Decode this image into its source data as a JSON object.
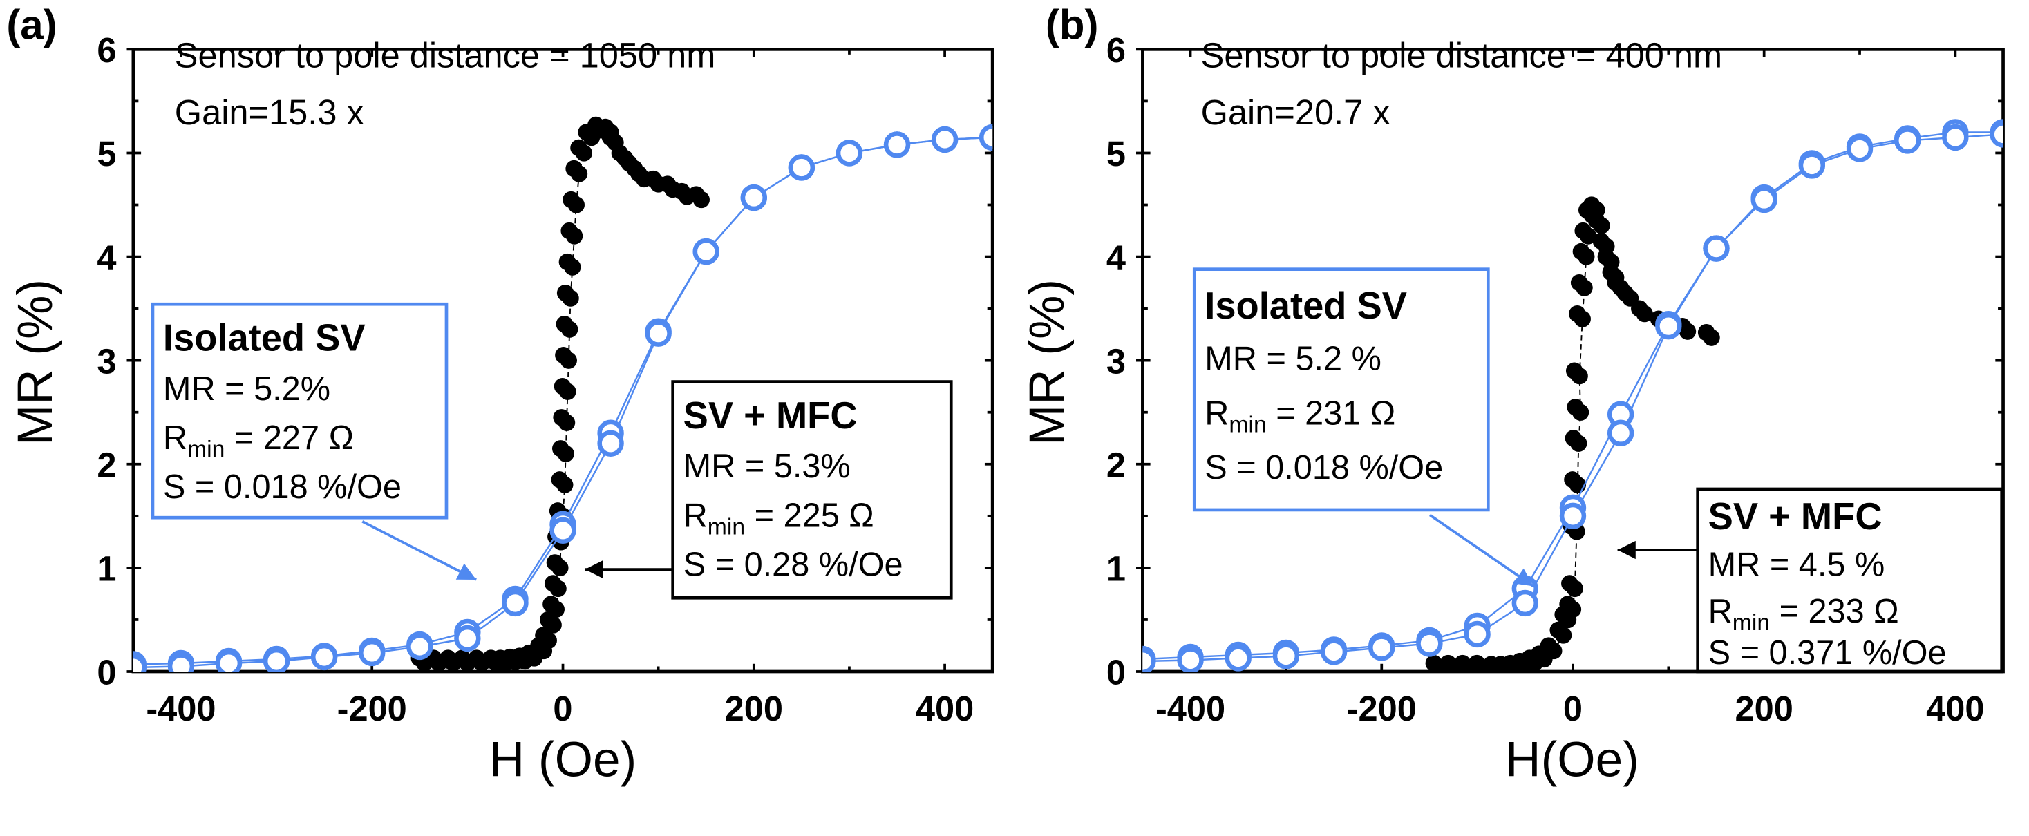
{
  "chart_data": [
    {
      "type": "scatter",
      "panel_label": "(a)",
      "xlabel": "H (Oe)",
      "ylabel": "MR (%)",
      "xlim": [
        -450,
        450
      ],
      "ylim": [
        0,
        6
      ],
      "xticks": [
        "-400",
        "-200",
        "0",
        "200",
        "400"
      ],
      "xtick_values": [
        -400,
        -200,
        0,
        200,
        400
      ],
      "yticks": [
        "0",
        "1",
        "2",
        "3",
        "4",
        "5",
        "6"
      ],
      "grid": false,
      "annotations": [
        "Sensor to pole distance = 1050 nm",
        "Gain=15.3 x"
      ],
      "boxes": {
        "isolated": {
          "title": "Isolated SV",
          "mr": "MR = 5.2%",
          "r_pre": "R",
          "r_sub": "min",
          "r_post": " = 227 Ω",
          "s": "S = 0.018 %/Oe"
        },
        "mfc": {
          "title": "SV + MFC",
          "mr": "MR = 5.3%",
          "r_pre": "R",
          "r_sub": "min",
          "r_post": " = 225 Ω",
          "s": "S = 0.28 %/Oe"
        }
      },
      "series": [
        {
          "name": "Isolated SV",
          "color": "#5089f0",
          "marker": "open-circle",
          "x": [
            -450,
            -400,
            -350,
            -300,
            -250,
            -200,
            -150,
            -100,
            -50,
            0,
            50,
            100,
            150,
            200,
            250,
            300,
            350,
            400,
            450
          ],
          "y": [
            0.07,
            0.08,
            0.1,
            0.12,
            0.15,
            0.2,
            0.26,
            0.38,
            0.7,
            1.42,
            2.3,
            3.28,
            4.05,
            4.57,
            4.86,
            5.0,
            5.08,
            5.13,
            5.15
          ],
          "y_return": [
            0.04,
            0.05,
            0.08,
            0.1,
            0.14,
            0.18,
            0.24,
            0.32,
            0.66,
            1.36,
            2.2,
            3.26,
            4.05,
            4.57,
            4.86,
            5.0,
            5.08,
            5.13,
            5.15
          ]
        },
        {
          "name": "SV + MFC",
          "color": "#000000",
          "marker": "filled-circle",
          "points": [
            [
              -145,
              0.08
            ],
            [
              -130,
              0.08
            ],
            [
              -115,
              0.08
            ],
            [
              -100,
              0.08
            ],
            [
              -85,
              0.08
            ],
            [
              -70,
              0.08
            ],
            [
              -60,
              0.08
            ],
            [
              -50,
              0.09
            ],
            [
              -40,
              0.1
            ],
            [
              -30,
              0.13
            ],
            [
              -20,
              0.2
            ],
            [
              -15,
              0.3
            ],
            [
              -10,
              0.45
            ],
            [
              -7,
              0.6
            ],
            [
              -5,
              0.8
            ],
            [
              -3,
              1.0
            ],
            [
              -2,
              1.25
            ],
            [
              0,
              1.5
            ],
            [
              2,
              1.8
            ],
            [
              3,
              2.1
            ],
            [
              4,
              2.4
            ],
            [
              5,
              2.7
            ],
            [
              6,
              3.0
            ],
            [
              7,
              3.3
            ],
            [
              8,
              3.6
            ],
            [
              10,
              3.9
            ],
            [
              12,
              4.2
            ],
            [
              14,
              4.5
            ],
            [
              17,
              4.8
            ],
            [
              22,
              5.0
            ],
            [
              30,
              5.15
            ],
            [
              40,
              5.22
            ],
            [
              50,
              5.2
            ],
            [
              55,
              5.1
            ],
            [
              65,
              4.95
            ],
            [
              75,
              4.85
            ],
            [
              85,
              4.75
            ],
            [
              100,
              4.7
            ],
            [
              115,
              4.65
            ],
            [
              130,
              4.58
            ],
            [
              145,
              4.55
            ]
          ]
        }
      ]
    },
    {
      "type": "scatter",
      "panel_label": "(b)",
      "xlabel": "H(Oe)",
      "ylabel": "MR (%)",
      "xlim": [
        -450,
        450
      ],
      "ylim": [
        0,
        6
      ],
      "xticks": [
        "-400",
        "-200",
        "0",
        "200",
        "400"
      ],
      "xtick_values": [
        -400,
        -200,
        0,
        200,
        400
      ],
      "yticks": [
        "0",
        "1",
        "2",
        "3",
        "4",
        "5",
        "6"
      ],
      "grid": false,
      "annotations": [
        "Sensor to pole distance = 400 nm",
        "Gain=20.7 x"
      ],
      "boxes": {
        "isolated": {
          "title": "Isolated SV",
          "mr": "MR = 5.2 %",
          "r_pre": "R",
          "r_sub": "min",
          "r_post": " = 231 Ω",
          "s": "S = 0.018 %/Oe"
        },
        "mfc": {
          "title": "SV + MFC",
          "mr": "MR = 4.5 %",
          "r_pre": "R",
          "r_sub": "min",
          "r_post": " = 233 Ω",
          "s": "S = 0.371 %/Oe"
        }
      },
      "series": [
        {
          "name": "Isolated SV",
          "color": "#5089f0",
          "marker": "open-circle",
          "x": [
            -450,
            -400,
            -350,
            -300,
            -250,
            -200,
            -150,
            -100,
            -50,
            0,
            50,
            100,
            150,
            200,
            250,
            300,
            350,
            400,
            450
          ],
          "y": [
            0.12,
            0.14,
            0.16,
            0.18,
            0.21,
            0.25,
            0.3,
            0.44,
            0.8,
            1.58,
            2.48,
            3.35,
            4.08,
            4.57,
            4.9,
            5.06,
            5.14,
            5.2,
            5.2
          ],
          "y_return": [
            0.1,
            0.11,
            0.13,
            0.15,
            0.19,
            0.23,
            0.27,
            0.36,
            0.66,
            1.5,
            2.3,
            3.33,
            4.08,
            4.55,
            4.88,
            5.04,
            5.12,
            5.15,
            5.18
          ]
        },
        {
          "name": "SV + MFC",
          "color": "#000000",
          "marker": "filled-circle",
          "points": [
            [
              -140,
              0.03
            ],
            [
              -125,
              0.03
            ],
            [
              -110,
              0.03
            ],
            [
              -95,
              0.03
            ],
            [
              -80,
              0.02
            ],
            [
              -70,
              0.02
            ],
            [
              -60,
              0.03
            ],
            [
              -50,
              0.05
            ],
            [
              -40,
              0.08
            ],
            [
              -30,
              0.12
            ],
            [
              -20,
              0.2
            ],
            [
              -10,
              0.35
            ],
            [
              -5,
              0.5
            ],
            [
              0,
              0.6
            ],
            [
              2,
              0.8
            ],
            [
              4,
              1.35
            ],
            [
              5,
              1.8
            ],
            [
              6,
              2.2
            ],
            [
              8,
              2.5
            ],
            [
              7,
              2.85
            ],
            [
              10,
              3.4
            ],
            [
              12,
              3.7
            ],
            [
              14,
              4.0
            ],
            [
              16,
              4.2
            ],
            [
              20,
              4.4
            ],
            [
              25,
              4.45
            ],
            [
              30,
              4.3
            ],
            [
              35,
              4.1
            ],
            [
              40,
              3.95
            ],
            [
              45,
              3.8
            ],
            [
              50,
              3.7
            ],
            [
              60,
              3.6
            ],
            [
              75,
              3.45
            ],
            [
              95,
              3.35
            ],
            [
              120,
              3.28
            ],
            [
              145,
              3.22
            ]
          ]
        }
      ]
    }
  ]
}
